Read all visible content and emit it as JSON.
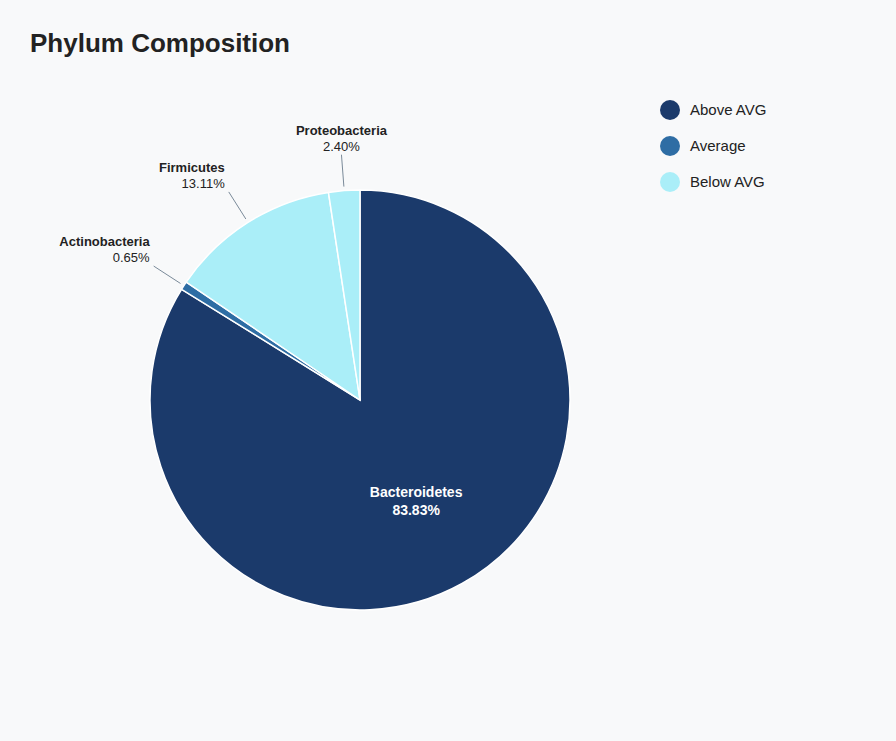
{
  "chart_data": {
    "type": "pie",
    "title": "Phylum Composition",
    "categories": [
      "Bacteroidetes",
      "Actinobacteria",
      "Firmicutes",
      "Proteobacteria"
    ],
    "values": [
      83.83,
      0.65,
      13.11,
      2.4
    ],
    "value_labels": [
      "83.83%",
      "0.65%",
      "13.11%",
      "2.40%"
    ],
    "colors": [
      "#1b3a6b",
      "#2e6da4",
      "#aaeef8",
      "#aaeef8"
    ],
    "data_labels": true,
    "legend": "upper right",
    "legend_entries": [
      {
        "label": "Above AVG",
        "color": "#1b3a6b"
      },
      {
        "label": "Average",
        "color": "#2e6da4"
      },
      {
        "label": "Below AVG",
        "color": "#aaeef8"
      }
    ]
  }
}
